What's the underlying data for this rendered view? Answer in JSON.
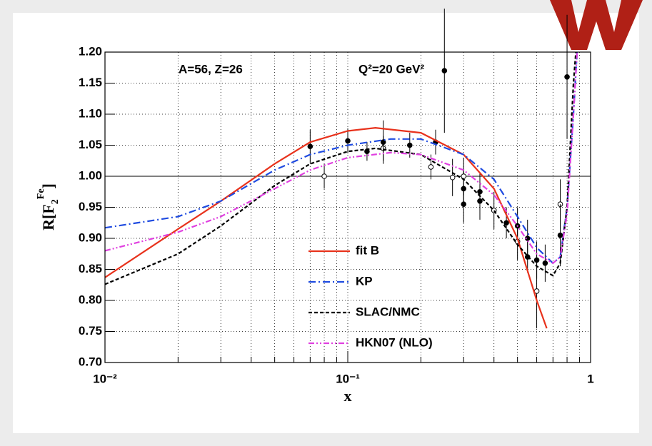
{
  "chart_data": {
    "type": "line",
    "xscale": "log",
    "xminor": true,
    "grid": true,
    "hline": 1,
    "xlabel": "x",
    "ylabel": {
      "base": "R[F",
      "sub": "2",
      "sup": "Fe",
      "close": "]"
    },
    "annotations": [
      "A=56, Z=26",
      "Q²=20 GeV²"
    ],
    "xlim": [
      0.01,
      1
    ],
    "xticks": [
      {
        "value": 0.01,
        "label": "10⁻²"
      },
      {
        "value": 0.1,
        "label": "10⁻¹"
      },
      1
    ],
    "ylim": [
      0.7,
      1.2
    ],
    "yticks": [
      {
        "value": 0.7,
        "label": "0.70"
      },
      {
        "value": 0.75,
        "label": "0.75"
      },
      {
        "value": 0.8,
        "label": "0.80"
      },
      {
        "value": 0.85,
        "label": "0.85"
      },
      {
        "value": 0.9,
        "label": "0.90"
      },
      {
        "value": 0.95,
        "label": "0.95"
      },
      {
        "value": 1.0,
        "label": "1.00"
      },
      {
        "value": 1.05,
        "label": "1.05"
      },
      {
        "value": 1.1,
        "label": "1.10"
      },
      {
        "value": 1.15,
        "label": "1.15"
      },
      {
        "value": 1.2,
        "label": "1.20"
      }
    ],
    "series": [
      {
        "name": "fit B",
        "color": "#e8321c",
        "dash": "solid",
        "x": [
          0.01,
          0.02,
          0.03,
          0.05,
          0.07,
          0.1,
          0.13,
          0.2,
          0.3,
          0.4,
          0.5,
          0.6,
          0.66
        ],
        "values": [
          0.837,
          0.915,
          0.96,
          1.02,
          1.055,
          1.073,
          1.078,
          1.07,
          1.035,
          0.98,
          0.9,
          0.8,
          0.755
        ]
      },
      {
        "name": "KP",
        "color": "#1f4be0",
        "dash": "dashdot",
        "x": [
          0.01,
          0.02,
          0.03,
          0.05,
          0.07,
          0.1,
          0.15,
          0.2,
          0.3,
          0.4,
          0.5,
          0.6,
          0.7,
          0.75,
          0.8,
          0.85,
          0.88
        ],
        "values": [
          0.917,
          0.935,
          0.96,
          1.01,
          1.035,
          1.05,
          1.06,
          1.06,
          1.035,
          0.995,
          0.935,
          0.885,
          0.86,
          0.87,
          0.95,
          1.1,
          1.2
        ]
      },
      {
        "name": "SLAC/NMC",
        "color": "#000000",
        "dash": "dash",
        "x": [
          0.01,
          0.02,
          0.03,
          0.05,
          0.07,
          0.1,
          0.13,
          0.2,
          0.3,
          0.4,
          0.5,
          0.6,
          0.7,
          0.75,
          0.8,
          0.85,
          0.87
        ],
        "values": [
          0.826,
          0.875,
          0.92,
          0.985,
          1.02,
          1.04,
          1.045,
          1.035,
          0.995,
          0.945,
          0.89,
          0.855,
          0.84,
          0.86,
          0.95,
          1.15,
          1.2
        ]
      },
      {
        "name": "HKN07 (NLO)",
        "color": "#e040e0",
        "dash": "dashdotdot",
        "x": [
          0.01,
          0.02,
          0.03,
          0.05,
          0.07,
          0.1,
          0.15,
          0.2,
          0.3,
          0.4,
          0.5,
          0.6,
          0.7,
          0.75,
          0.8,
          0.85,
          0.88
        ],
        "values": [
          0.88,
          0.91,
          0.935,
          0.98,
          1.01,
          1.03,
          1.038,
          1.035,
          1.01,
          0.97,
          0.92,
          0.875,
          0.86,
          0.87,
          0.94,
          1.1,
          1.2
        ]
      }
    ],
    "points": {
      "x": [
        0.07,
        0.08,
        0.1,
        0.12,
        0.14,
        0.14,
        0.18,
        0.22,
        0.23,
        0.25,
        0.27,
        0.3,
        0.3,
        0.3,
        0.35,
        0.35,
        0.4,
        0.45,
        0.5,
        0.5,
        0.55,
        0.55,
        0.6,
        0.6,
        0.65,
        0.75,
        0.75,
        0.8
      ],
      "y": [
        1.048,
        1.0,
        1.057,
        1.04,
        1.045,
        1.055,
        1.05,
        1.015,
        1.055,
        1.17,
        0.998,
        0.98,
        0.955,
        1.0,
        0.975,
        0.96,
        0.945,
        0.925,
        0.92,
        0.895,
        0.87,
        0.9,
        0.815,
        0.865,
        0.86,
        0.955,
        0.905,
        1.16
      ],
      "err": [
        0.027,
        0.02,
        0.02,
        0.015,
        0.02,
        0.035,
        0.02,
        0.02,
        0.02,
        0.1,
        0.03,
        0.03,
        0.03,
        0.03,
        0.03,
        0.03,
        0.03,
        0.025,
        0.03,
        0.03,
        0.025,
        0.03,
        0.06,
        0.03,
        0.03,
        0.04,
        0.05,
        0.1
      ]
    }
  }
}
